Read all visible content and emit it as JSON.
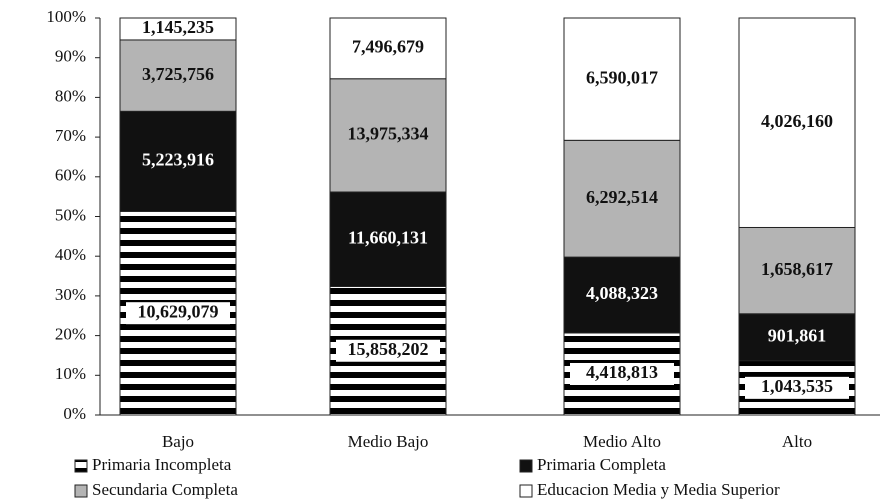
{
  "chart_data": {
    "type": "bar",
    "stack": "percent",
    "categories": [
      "Bajo",
      "Medio Bajo",
      "Medio Alto",
      "Alto"
    ],
    "series": [
      {
        "name": "Primaria Incompleta",
        "color": "#000000",
        "pattern": "stripes",
        "values": [
          10629079,
          15858202,
          4418813,
          1043535
        ],
        "value_labels": [
          "10,629,079",
          "15,858,202",
          "4,418,813",
          "1,043,535"
        ]
      },
      {
        "name": "Primaria Completa",
        "color": "#111111",
        "values": [
          5223916,
          11660131,
          4088323,
          901861
        ],
        "value_labels": [
          "5,223,916",
          "11,660,131",
          "4,088,323",
          "901,861"
        ]
      },
      {
        "name": "Secundaria Completa",
        "color": "#b4b4b4",
        "values": [
          3725756,
          13975334,
          6292514,
          1658617
        ],
        "value_labels": [
          "3,725,756",
          "13,975,334",
          "6,292,514",
          "1,658,617"
        ]
      },
      {
        "name": "Educacion Media y Media Superior",
        "color": "#ffffff",
        "values": [
          1145235,
          7496679,
          6590017,
          4026160
        ],
        "value_labels": [
          "1,145,235",
          "7,496,679",
          "6,590,017",
          "4,026,160"
        ]
      }
    ],
    "ylim": [
      0,
      100
    ],
    "yticks": [
      {
        "value": 0,
        "label": "0%"
      },
      {
        "value": 10,
        "label": "10%"
      },
      {
        "value": 20,
        "label": "20%"
      },
      {
        "value": 30,
        "label": "30%"
      },
      {
        "value": 40,
        "label": "40%"
      },
      {
        "value": 50,
        "label": "50%"
      },
      {
        "value": 60,
        "label": "60%"
      },
      {
        "value": 70,
        "label": "70%"
      },
      {
        "value": 80,
        "label": "80%"
      },
      {
        "value": 90,
        "label": "90%"
      },
      {
        "value": 100,
        "label": "100%"
      }
    ]
  }
}
